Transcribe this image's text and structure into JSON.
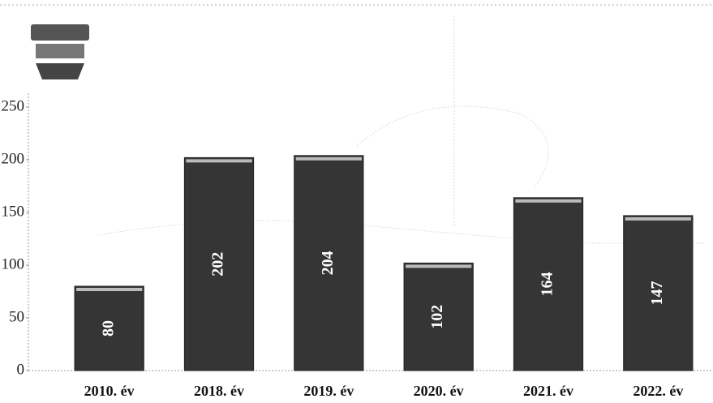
{
  "chart_data": {
    "type": "bar",
    "categories": [
      "2010. év",
      "2018. év",
      "2019. év",
      "2020. év",
      "2021. év",
      "2022. év"
    ],
    "values": [
      80,
      202,
      204,
      102,
      164,
      147
    ],
    "color": "#353535",
    "ylim": [
      0,
      250
    ],
    "yticks": [
      0,
      50,
      100,
      150,
      200,
      250
    ],
    "grid": false
  }
}
